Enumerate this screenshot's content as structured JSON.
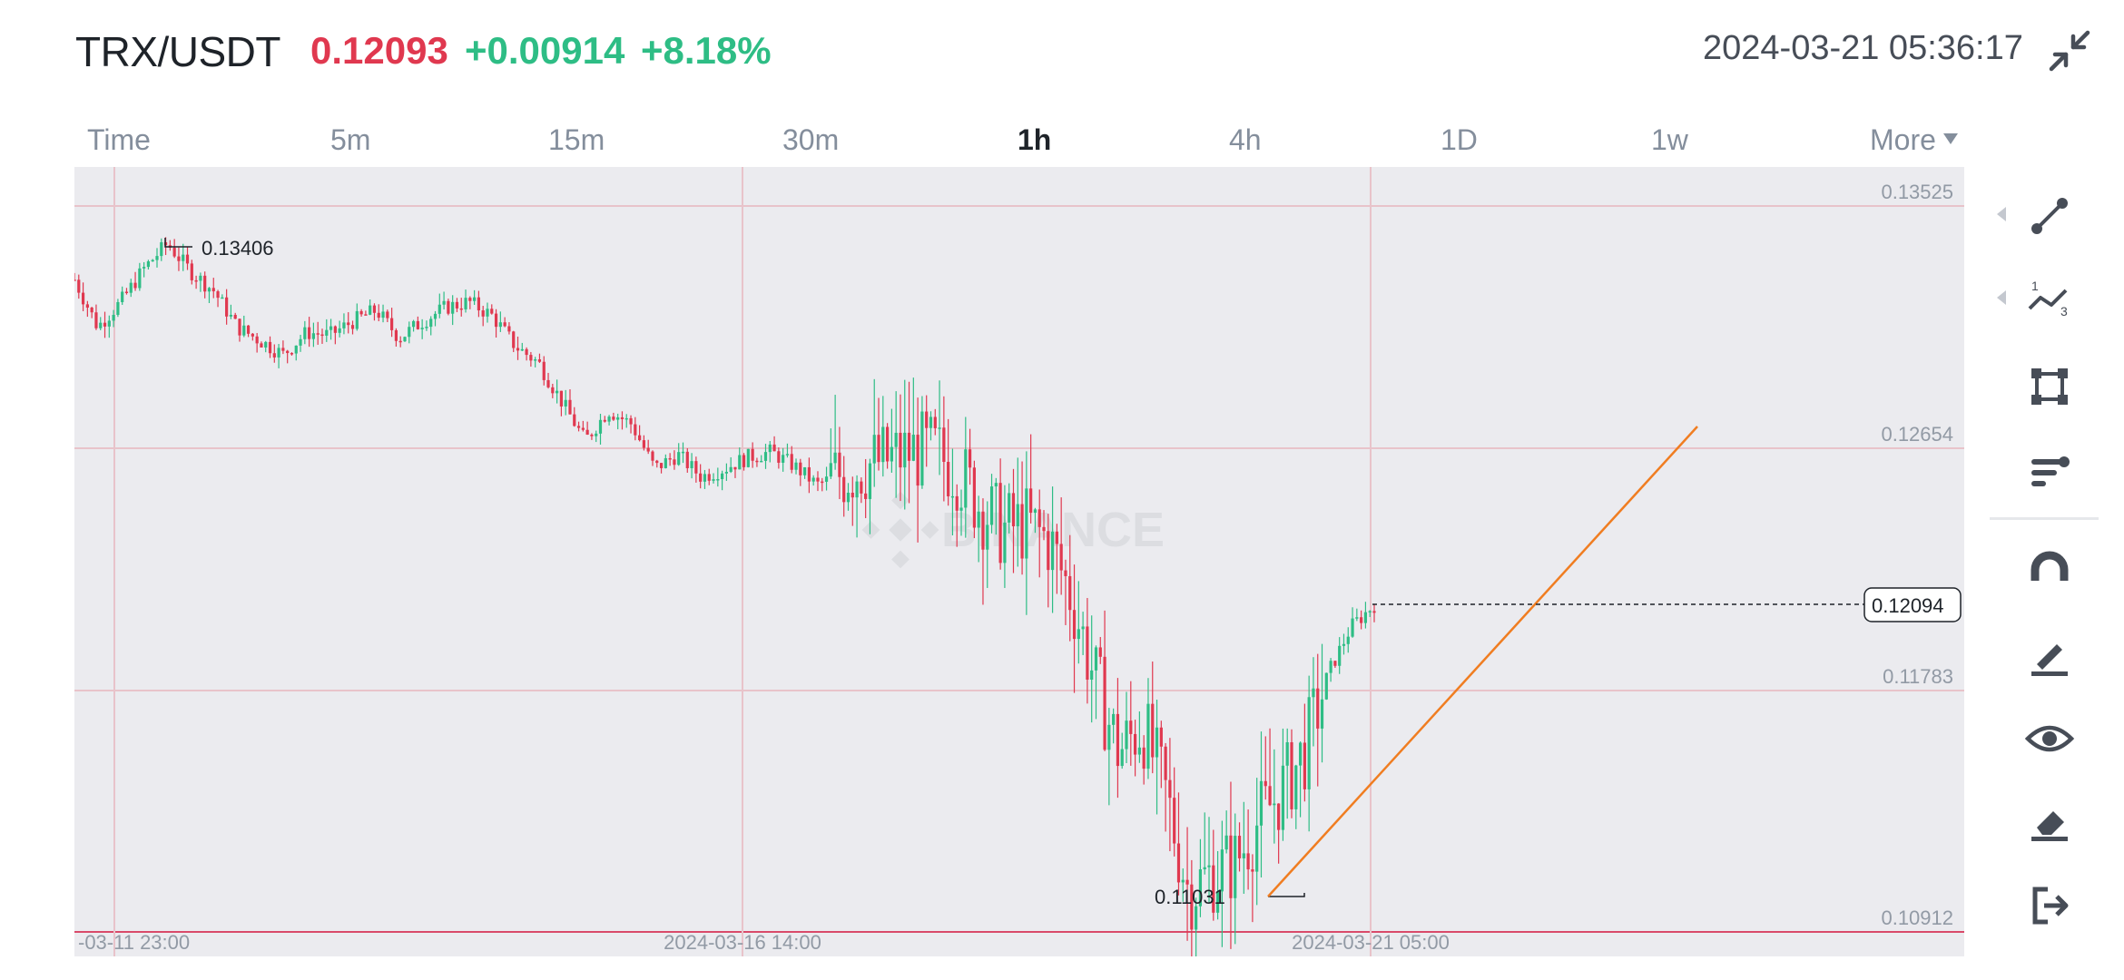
{
  "header": {
    "pair": "TRX/USDT",
    "last_price": "0.12093",
    "change": "+0.00914",
    "change_pct": "+8.18%",
    "datetime": "2024-03-21 05:36:17",
    "up_color": "#2ebd85",
    "down_color": "#e0384f"
  },
  "tabs": [
    {
      "label": "Time"
    },
    {
      "label": "5m"
    },
    {
      "label": "15m"
    },
    {
      "label": "30m"
    },
    {
      "label": "1h",
      "active": true
    },
    {
      "label": "4h"
    },
    {
      "label": "1D"
    },
    {
      "label": "1w"
    },
    {
      "label": "More"
    }
  ],
  "watermark": "BINANCE",
  "chart_data": {
    "type": "candlestick",
    "interval": "1h",
    "y_axis_ticks": [
      "0.13525",
      "0.12654",
      "0.11783",
      "0.10912"
    ],
    "ylim": [
      0.10912,
      0.13525
    ],
    "x_axis_ticks": [
      "-03-11 23:00",
      "2024-03-16 14:00",
      "2024-03-21 05:00"
    ],
    "current_price_label": "0.12094",
    "high_marker": "0.13406",
    "low_marker": "0.11031",
    "trend_line": {
      "color": "#f07d21"
    },
    "close_path": [
      0.1326,
      0.1309,
      0.1318,
      0.133,
      0.1339,
      0.1329,
      0.1322,
      0.1309,
      0.1304,
      0.1299,
      0.1307,
      0.1306,
      0.1311,
      0.1315,
      0.1305,
      0.1311,
      0.1316,
      0.1318,
      0.1313,
      0.1302,
      0.1296,
      0.1282,
      0.1268,
      0.1279,
      0.1274,
      0.1258,
      0.1263,
      0.1255,
      0.1258,
      0.1262,
      0.1264,
      0.1259,
      0.1252,
      0.1256,
      0.1259,
      0.1261,
      0.1264,
      0.1264,
      0.1258,
      0.1245,
      0.1236,
      0.1238,
      0.1232,
      0.1211,
      0.1181,
      0.1156,
      0.1166,
      0.1141,
      0.1106,
      0.1112,
      0.1116,
      0.1131,
      0.1142,
      0.1156,
      0.1184,
      0.1201,
      0.1209
    ]
  },
  "toolbar": {
    "tools": [
      {
        "icon": "trend-line-icon"
      },
      {
        "icon": "fibonacci-icon"
      },
      {
        "icon": "rectangle-icon"
      },
      {
        "icon": "indicators-icon"
      },
      {
        "icon": "magnet-icon"
      },
      {
        "icon": "brush-icon"
      },
      {
        "icon": "eye-icon"
      },
      {
        "icon": "eraser-icon"
      },
      {
        "icon": "exit-icon"
      }
    ]
  }
}
